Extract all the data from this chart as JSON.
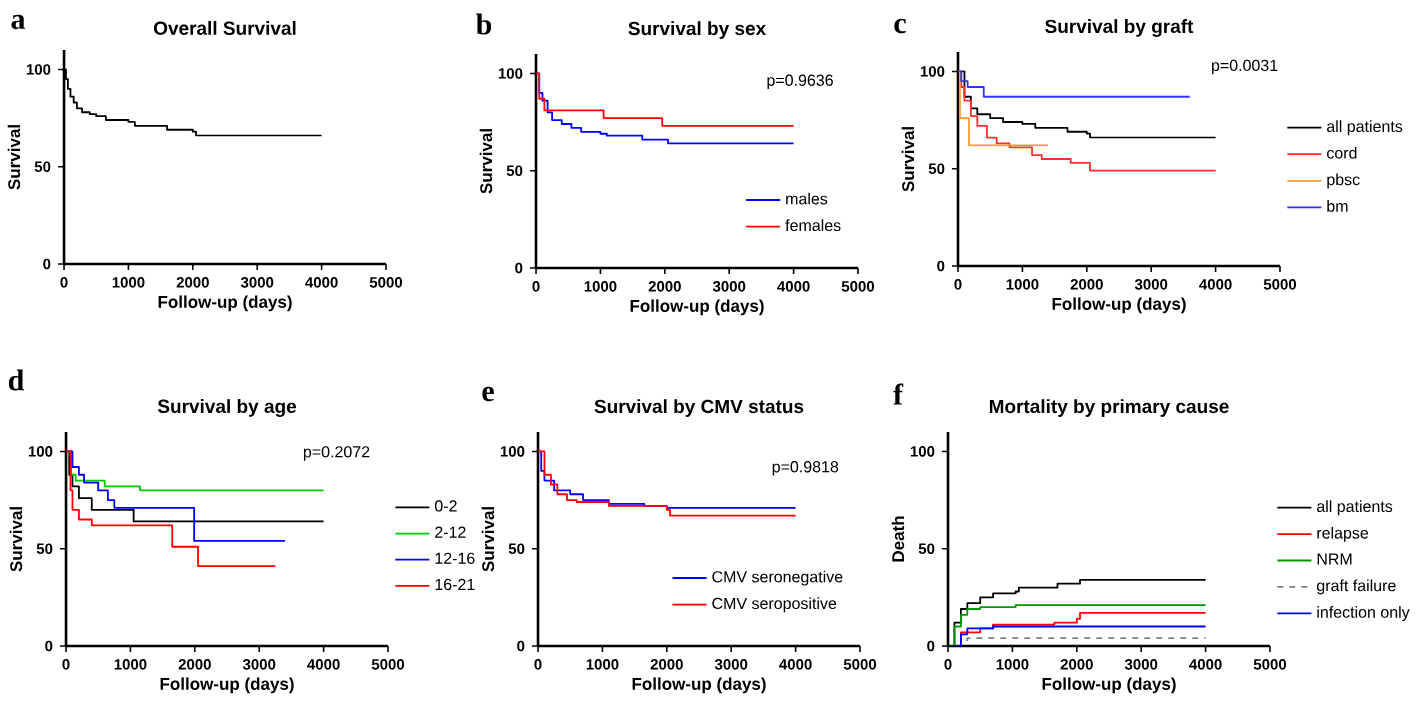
{
  "chart_data": [
    {
      "type": "step",
      "title": "Overall Survival",
      "xlabel": "Follow-up (days)",
      "ylabel": "Survival",
      "annotations": [
        "a"
      ],
      "xlim": [
        0,
        5000
      ],
      "xticks": [
        0,
        1000,
        2000,
        3000,
        4000,
        5000
      ],
      "ylim": [
        0,
        110
      ],
      "yticks": [
        0,
        50,
        100
      ],
      "series": [
        {
          "color": "#000000",
          "x": [
            0,
            30,
            60,
            100,
            150,
            200,
            280,
            400,
            500,
            650,
            1000,
            1100,
            1600,
            2000,
            2050,
            4000
          ],
          "values": [
            100,
            95,
            90,
            86,
            83,
            80,
            78,
            77,
            76,
            74,
            73,
            71,
            69,
            68,
            66,
            66
          ]
        }
      ]
    },
    {
      "type": "step",
      "title": "Survival by sex",
      "xlabel": "Follow-up (days)",
      "ylabel": "Survival",
      "annotations": [
        "b",
        "p=0.9636"
      ],
      "xlim": [
        0,
        5000
      ],
      "xticks": [
        0,
        1000,
        2000,
        3000,
        4000,
        5000
      ],
      "ylim": [
        0,
        110
      ],
      "yticks": [
        0,
        50,
        100
      ],
      "legend": "bottom right",
      "series": [
        {
          "name": "males",
          "color": "#0000ff",
          "x": [
            0,
            50,
            100,
            180,
            250,
            400,
            550,
            700,
            1000,
            1100,
            1650,
            2050,
            4000
          ],
          "values": [
            100,
            90,
            86,
            80,
            76,
            74,
            72,
            70,
            69,
            68,
            66,
            64,
            64
          ]
        },
        {
          "name": "females",
          "color": "#ff0000",
          "x": [
            0,
            50,
            130,
            1050,
            1960,
            4000
          ],
          "values": [
            100,
            87,
            81,
            77,
            73,
            73
          ]
        }
      ]
    },
    {
      "type": "step",
      "title": "Survival by graft",
      "xlabel": "Follow-up (days)",
      "ylabel": "Survival",
      "annotations": [
        "c",
        "p=0.0031"
      ],
      "xlim": [
        0,
        5000
      ],
      "xticks": [
        0,
        1000,
        2000,
        3000,
        4000,
        5000
      ],
      "ylim": [
        0,
        110
      ],
      "yticks": [
        0,
        50,
        100
      ],
      "legend": "right",
      "series": [
        {
          "name": "all patients",
          "color": "#000000",
          "x": [
            0,
            100,
            200,
            300,
            500,
            700,
            1000,
            1200,
            1700,
            2000,
            2050,
            4000
          ],
          "values": [
            100,
            87,
            81,
            78,
            76,
            74,
            73,
            71,
            69,
            68,
            66,
            66
          ]
        },
        {
          "name": "cord",
          "color": "#ff3030",
          "x": [
            0,
            50,
            100,
            200,
            300,
            450,
            600,
            800,
            1150,
            1300,
            1750,
            2050,
            4000
          ],
          "values": [
            100,
            92,
            85,
            77,
            72,
            66,
            63,
            61,
            57,
            55,
            53,
            49,
            49
          ]
        },
        {
          "name": "pbsc",
          "color": "#ff9933",
          "x": [
            0,
            30,
            170,
            1400
          ],
          "values": [
            100,
            76,
            62,
            62
          ]
        },
        {
          "name": "bm",
          "color": "#3333ff",
          "x": [
            0,
            50,
            150,
            400,
            3600
          ],
          "values": [
            100,
            95,
            92,
            87,
            87
          ]
        }
      ]
    },
    {
      "type": "step",
      "title": "Survival by age",
      "xlabel": "Follow-up (days)",
      "ylabel": "Survival",
      "annotations": [
        "d",
        "p=0.2072"
      ],
      "xlim": [
        0,
        5000
      ],
      "xticks": [
        0,
        1000,
        2000,
        3000,
        4000,
        5000
      ],
      "ylim": [
        0,
        110
      ],
      "yticks": [
        0,
        50,
        100
      ],
      "legend": "right",
      "series": [
        {
          "name": "0-2",
          "color": "#000000",
          "x": [
            0,
            50,
            100,
            200,
            400,
            1050,
            4000
          ],
          "values": [
            100,
            88,
            82,
            76,
            70,
            64,
            64
          ]
        },
        {
          "name": "2-12",
          "color": "#00cc00",
          "x": [
            0,
            80,
            150,
            600,
            1150,
            4000
          ],
          "values": [
            100,
            88,
            85,
            82,
            80,
            80
          ]
        },
        {
          "name": "12-16",
          "color": "#0000ff",
          "x": [
            0,
            100,
            200,
            280,
            500,
            650,
            750,
            1950,
            1990,
            3400
          ],
          "values": [
            100,
            92,
            88,
            84,
            80,
            75,
            71,
            71,
            54,
            54
          ]
        },
        {
          "name": "16-21",
          "color": "#ff0000",
          "x": [
            0,
            70,
            100,
            200,
            400,
            1650,
            2050,
            3250
          ],
          "values": [
            100,
            80,
            70,
            65,
            62,
            51,
            41,
            41
          ]
        }
      ]
    },
    {
      "type": "step",
      "title": "Survival by CMV status",
      "xlabel": "Follow-up (days)",
      "ylabel": "Survival",
      "annotations": [
        "e",
        "p=0.9818"
      ],
      "xlim": [
        0,
        5000
      ],
      "xticks": [
        0,
        1000,
        2000,
        3000,
        4000,
        5000
      ],
      "ylim": [
        0,
        110
      ],
      "yticks": [
        0,
        50,
        100
      ],
      "legend": "bottom right",
      "series": [
        {
          "name": "CMV seronegative",
          "color": "#0000ff",
          "x": [
            0,
            50,
            100,
            250,
            500,
            700,
            1100,
            1650,
            2000,
            4000
          ],
          "values": [
            100,
            90,
            85,
            80,
            78,
            75,
            73,
            72,
            71,
            71
          ]
        },
        {
          "name": "CMV seropositive",
          "color": "#ff0000",
          "x": [
            0,
            100,
            200,
            300,
            450,
            600,
            1100,
            2000,
            2050,
            4000
          ],
          "values": [
            100,
            88,
            83,
            78,
            75,
            74,
            72,
            70,
            67,
            67
          ]
        }
      ]
    },
    {
      "type": "step",
      "title": "Mortality by primary cause",
      "xlabel": "Follow-up (days)",
      "ylabel": "Death",
      "annotations": [
        "f"
      ],
      "xlim": [
        0,
        5000
      ],
      "xticks": [
        0,
        1000,
        2000,
        3000,
        4000,
        5000
      ],
      "ylim": [
        0,
        110
      ],
      "yticks": [
        0,
        50,
        100
      ],
      "legend": "right",
      "series": [
        {
          "name": "all patients",
          "color": "#000000",
          "x": [
            0,
            100,
            200,
            300,
            500,
            700,
            1050,
            1100,
            1700,
            2050,
            4000
          ],
          "values": [
            0,
            12,
            19,
            22,
            25,
            27,
            28,
            30,
            32,
            34,
            34
          ]
        },
        {
          "name": "relapse",
          "color": "#ff0000",
          "x": [
            0,
            200,
            500,
            700,
            1650,
            2000,
            2050,
            4000
          ],
          "values": [
            0,
            7,
            9,
            11,
            12,
            14,
            17,
            17
          ]
        },
        {
          "name": "NRM",
          "color": "#009900",
          "x": [
            0,
            100,
            200,
            300,
            500,
            1050,
            4000
          ],
          "values": [
            0,
            10,
            16,
            19,
            20,
            21,
            21
          ]
        },
        {
          "name": "graft failure",
          "color": "#808080",
          "line_style": "dashed",
          "x": [
            0,
            200,
            300,
            4000
          ],
          "values": [
            0,
            3,
            4,
            4
          ]
        },
        {
          "name": "infection only",
          "color": "#0000ff",
          "x": [
            0,
            200,
            300,
            700,
            4000
          ],
          "values": [
            0,
            6,
            9,
            10,
            10
          ]
        }
      ]
    }
  ]
}
